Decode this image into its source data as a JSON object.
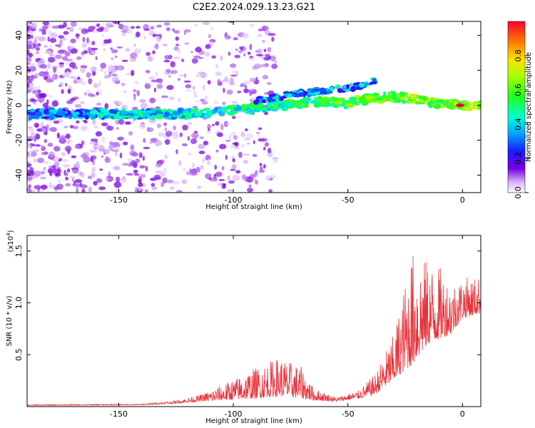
{
  "title": "C2E2.2024.029.13.23.G21",
  "chart_data": [
    {
      "type": "heatmap",
      "xlabel": "Height of straight line (km)",
      "ylabel": "Frequency (Hz)",
      "xlim": [
        -190,
        8
      ],
      "ylim": [
        -50,
        48
      ],
      "xticks": [
        -150,
        -100,
        -50,
        0
      ],
      "yticks": [
        -40,
        -20,
        0,
        20,
        40
      ],
      "colorbar": {
        "label": "Normalized spectral amplitude",
        "range": [
          0,
          1
        ],
        "ticks": [
          0.0,
          0.2,
          0.4,
          0.6,
          0.8
        ]
      },
      "ridge": {
        "x": [
          -185,
          -160,
          -140,
          -120,
          -100,
          -80,
          -65,
          -50,
          -40,
          -30,
          -20,
          -10,
          0,
          8
        ],
        "y": [
          -5,
          -5,
          -5,
          -5,
          -3,
          0,
          2,
          1,
          4,
          5,
          3,
          1,
          0,
          -1
        ]
      },
      "upper_ridge": {
        "x": [
          -90,
          -70,
          -55,
          -45,
          -38
        ],
        "y": [
          3,
          7,
          9,
          11,
          14
        ]
      },
      "peak": {
        "x": -1,
        "y": 0,
        "value": 1.0
      }
    },
    {
      "type": "line",
      "xlabel": "Height of straight line (km)",
      "ylabel": "SNR (10 * v/v)",
      "yscale_label": "(x10",
      "yscale_exp": "4",
      "yscale_close": ")",
      "xlim": [
        -190,
        8
      ],
      "ylim": [
        0,
        1.65
      ],
      "xticks": [
        -150,
        -100,
        -50,
        0
      ],
      "yticks": [
        0.5,
        1.0,
        1.5
      ],
      "series_color": "#e8333a",
      "envelope": {
        "x": [
          -190,
          -140,
          -125,
          -115,
          -105,
          -90,
          -80,
          -70,
          -65,
          -55,
          -45,
          -38,
          -30,
          -25,
          -22,
          -15,
          -10,
          -5,
          0,
          8
        ],
        "base": [
          0.01,
          0.015,
          0.03,
          0.05,
          0.06,
          0.08,
          0.1,
          0.08,
          0.06,
          0.05,
          0.08,
          0.12,
          0.25,
          0.35,
          0.4,
          0.6,
          0.65,
          0.7,
          0.85,
          0.9
        ],
        "amp": [
          0.01,
          0.01,
          0.03,
          0.06,
          0.15,
          0.3,
          0.38,
          0.3,
          0.12,
          0.04,
          0.08,
          0.2,
          0.45,
          0.85,
          1.1,
          0.8,
          0.7,
          0.5,
          0.4,
          0.35
        ]
      }
    }
  ]
}
